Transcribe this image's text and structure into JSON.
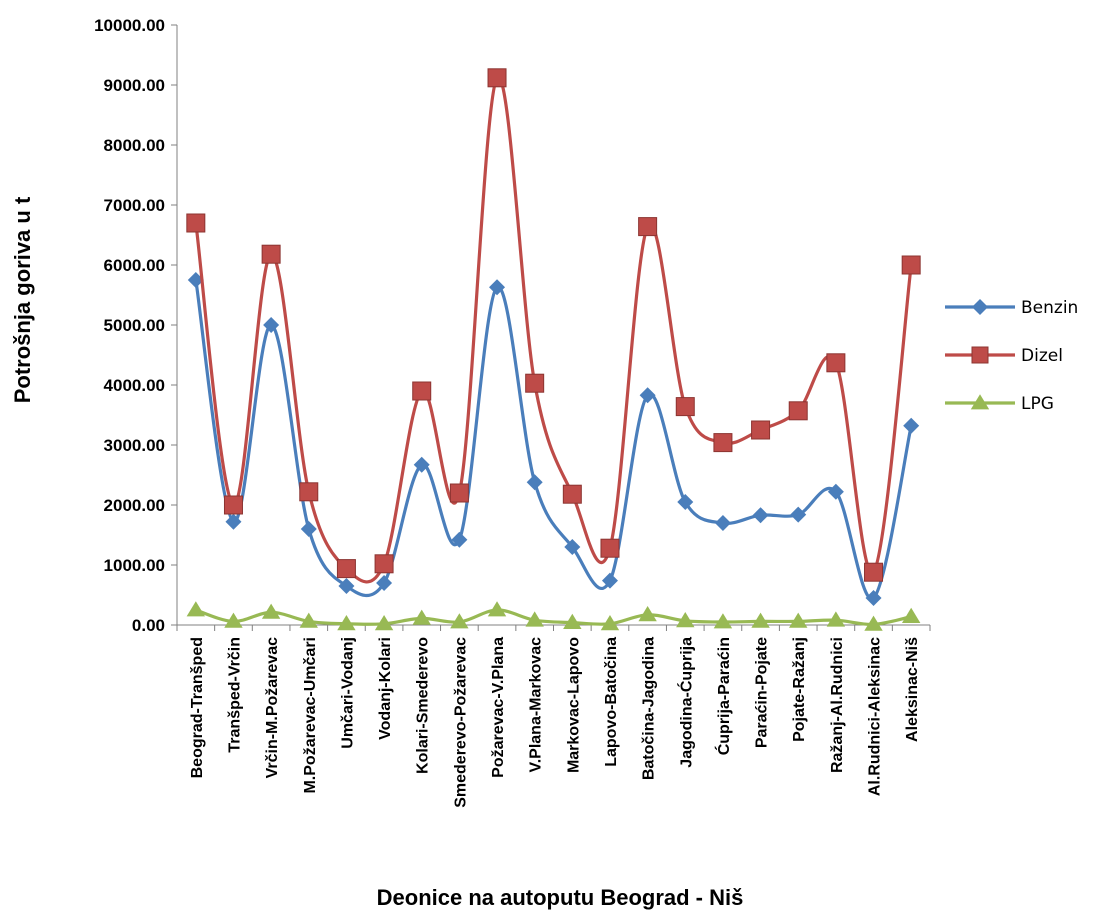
{
  "chart_data": {
    "type": "line",
    "xlabel": "Deonice na autoputu Beograd - Niš",
    "ylabel": "Potrošnja goriva u t",
    "ylim": [
      0,
      10000
    ],
    "ytick_step": 1000,
    "ytick_decimals": 2,
    "grid": false,
    "legend_position": "right",
    "smooth": true,
    "categories": [
      "Beograd-Tranšped",
      "Tranšped-Vrčin",
      "Vrčin-M.Požarevac",
      "M.Požarevac-Umčari",
      "Umčari-Vodanj",
      "Vodanj-Kolari",
      "Kolari-Smederevo",
      "Smederevo-Požarevac",
      "Požarevac-V.Plana",
      "V.Plana-Markovac",
      "Markovac-Lapovo",
      "Lapovo-Batočina",
      "Batočina-Jagodina",
      "Jagodina-Ćuprija",
      "Ćuprija-Paraćin",
      "Paraćin-Pojate",
      "Pojate-Ražanj",
      "Ražanj-Al.Rudnici",
      "Al.Rudnici-Aleksinac",
      "Aleksinac-Niš"
    ],
    "series": [
      {
        "name": "Benzin",
        "color": "#4a7ebb",
        "marker": "diamond",
        "values": [
          5750,
          1720,
          5000,
          1600,
          650,
          700,
          2670,
          1420,
          5630,
          2380,
          1300,
          740,
          3830,
          2050,
          1700,
          1830,
          1840,
          2220,
          450,
          3320
        ]
      },
      {
        "name": "Dizel",
        "color": "#be4b48",
        "marker": "square",
        "values": [
          6700,
          2000,
          6180,
          2220,
          940,
          1020,
          3900,
          2200,
          9120,
          4030,
          2180,
          1280,
          6640,
          3640,
          3040,
          3250,
          3570,
          4370,
          880,
          6000
        ]
      },
      {
        "name": "LPG",
        "color": "#98b954",
        "marker": "triangle",
        "values": [
          250,
          60,
          210,
          60,
          20,
          20,
          110,
          50,
          250,
          80,
          40,
          20,
          170,
          70,
          50,
          60,
          60,
          80,
          10,
          140
        ]
      }
    ]
  }
}
